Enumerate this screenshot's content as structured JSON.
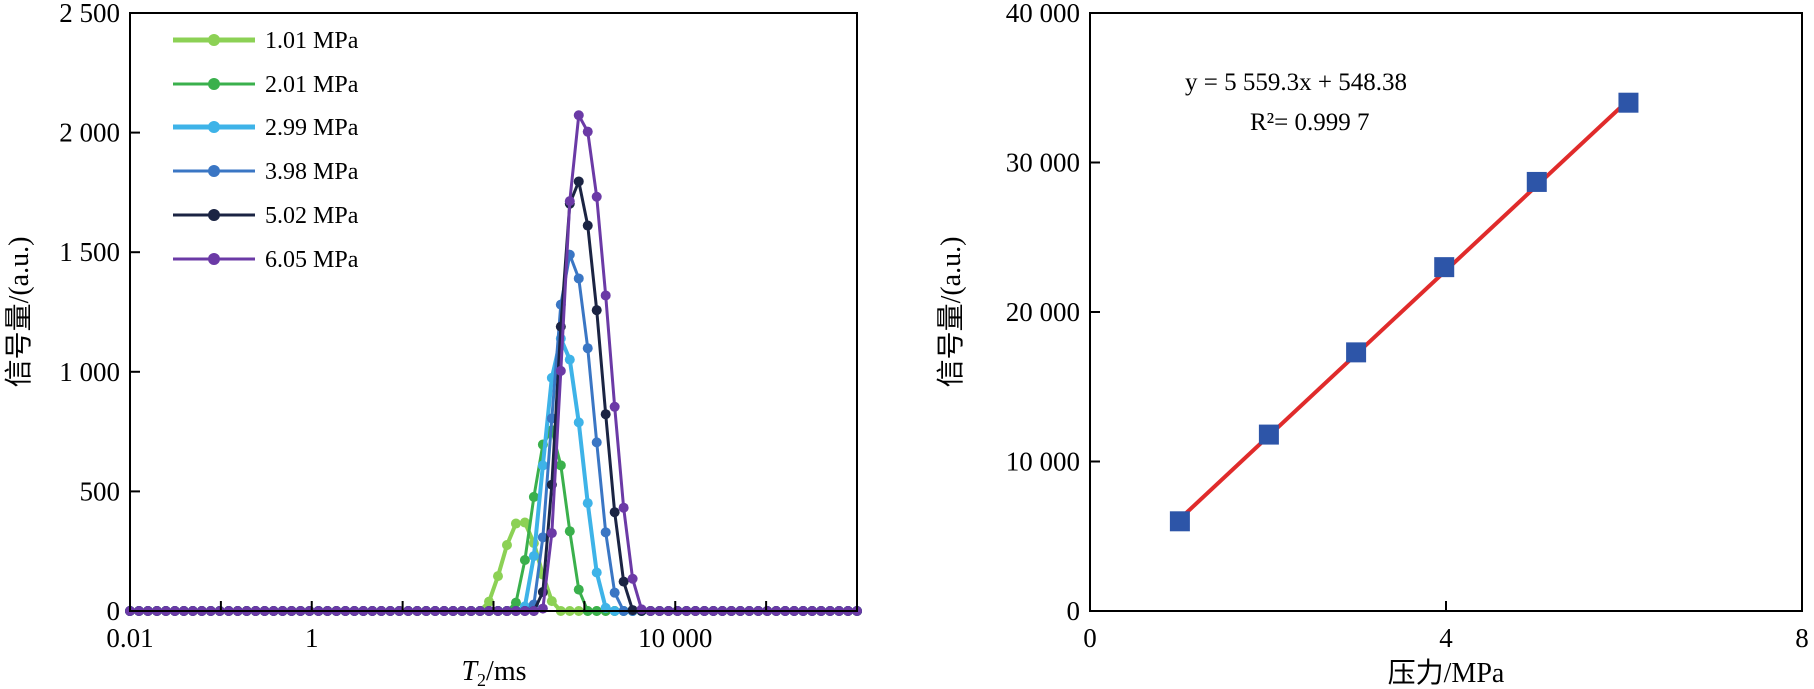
{
  "chart_data": [
    {
      "type": "line",
      "x_scale": "log",
      "xlabel": {
        "main": "T",
        "sub": "2",
        "unit": "/ms"
      },
      "ylabel": "信号量/(a.u.)",
      "xlim": [
        0.01,
        1000000
      ],
      "ylim": [
        0,
        2500
      ],
      "x_ticks": [
        {
          "value": 0.01,
          "label": "0.01"
        },
        {
          "value": 1,
          "label": "1"
        },
        {
          "value": 10000,
          "label": "10 000"
        }
      ],
      "y_ticks": [
        {
          "value": 0,
          "label": "0"
        },
        {
          "value": 500,
          "label": "500"
        },
        {
          "value": 1000,
          "label": "1 000"
        },
        {
          "value": 1500,
          "label": "1 500"
        },
        {
          "value": 2000,
          "label": "2 000"
        },
        {
          "value": 2500,
          "label": "2 500"
        }
      ],
      "legend_position": "top-left",
      "points_per_series": 82,
      "series": [
        {
          "name": "1.01 MPa",
          "color": "#8cd155",
          "peak_x": 200,
          "peak_y": 380,
          "start_x": 70,
          "end_x": 560
        },
        {
          "name": "2.01 MPa",
          "color": "#3ab04c",
          "peak_x": 420,
          "peak_y": 760,
          "start_x": 150,
          "end_x": 1100
        },
        {
          "name": "2.99 MPa",
          "color": "#3eb3e8",
          "peak_x": 560,
          "peak_y": 1140,
          "start_x": 200,
          "end_x": 1900
        },
        {
          "name": "3.98 MPa",
          "color": "#3a76c4",
          "peak_x": 700,
          "peak_y": 1490,
          "start_x": 250,
          "end_x": 2700
        },
        {
          "name": "5.02 MPa",
          "color": "#1b2443",
          "peak_x": 800,
          "peak_y": 1810,
          "start_x": 300,
          "end_x": 3600
        },
        {
          "name": "6.05 MPa",
          "color": "#6b3aa6",
          "peak_x": 900,
          "peak_y": 2080,
          "start_x": 330,
          "end_x": 4600
        }
      ]
    },
    {
      "type": "scatter",
      "xlabel": "压力/MPa",
      "ylabel": "信号量/(a.u.)",
      "xlim": [
        0,
        8
      ],
      "ylim": [
        0,
        40000
      ],
      "x_ticks": [
        {
          "value": 0,
          "label": "0"
        },
        {
          "value": 4,
          "label": "4"
        },
        {
          "value": 8,
          "label": "8"
        }
      ],
      "y_ticks": [
        {
          "value": 0,
          "label": "0"
        },
        {
          "value": 10000,
          "label": "10 000"
        },
        {
          "value": 20000,
          "label": "20 000"
        },
        {
          "value": 30000,
          "label": "30 000"
        },
        {
          "value": 40000,
          "label": "40 000"
        }
      ],
      "points": {
        "x": [
          1.01,
          2.01,
          2.99,
          3.98,
          5.02,
          6.05
        ],
        "y": [
          6000,
          11800,
          17300,
          23000,
          28700,
          34000
        ]
      },
      "marker_color": "#2d55a8",
      "fit": {
        "slope": 5559.3,
        "intercept": 548.38,
        "x_range": [
          1.01,
          6.05
        ],
        "color": "#e02b2b"
      },
      "equation": "y = 5 559.3x + 548.38",
      "r2_label": "R²= 0.999 7"
    }
  ]
}
